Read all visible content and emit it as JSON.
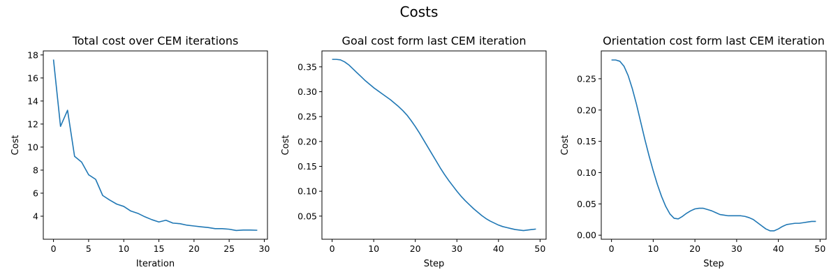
{
  "figure": {
    "title": "Costs"
  },
  "chart_data": [
    {
      "type": "line",
      "title": "Total cost over CEM iterations",
      "xlabel": "Iteration",
      "ylabel": "Cost",
      "xlim": [
        -1.45,
        30.45
      ],
      "ylim": [
        2.0,
        18.35
      ],
      "xticks": [
        0,
        5,
        10,
        15,
        20,
        25,
        30
      ],
      "yticks": [
        4,
        6,
        8,
        10,
        12,
        14,
        16,
        18
      ],
      "grid": false,
      "color": "#1f77b4",
      "x": [
        0,
        1,
        2,
        3,
        4,
        5,
        6,
        7,
        8,
        9,
        10,
        11,
        12,
        13,
        14,
        15,
        16,
        17,
        18,
        19,
        20,
        21,
        22,
        23,
        24,
        25,
        26,
        27,
        28,
        29
      ],
      "y": [
        17.6,
        11.8,
        13.2,
        9.2,
        8.7,
        7.6,
        7.2,
        5.8,
        5.4,
        5.05,
        4.85,
        4.45,
        4.25,
        3.95,
        3.7,
        3.5,
        3.65,
        3.4,
        3.35,
        3.22,
        3.15,
        3.08,
        3.02,
        2.92,
        2.92,
        2.87,
        2.76,
        2.8,
        2.8,
        2.78
      ]
    },
    {
      "type": "line",
      "title": "Goal cost form last CEM iteration",
      "xlabel": "Step",
      "ylabel": "Cost",
      "xlim": [
        -2.45,
        51.45
      ],
      "ylim": [
        0.0035,
        0.382
      ],
      "xticks": [
        0,
        10,
        20,
        30,
        40,
        50
      ],
      "yticks": [
        0.05,
        0.1,
        0.15,
        0.2,
        0.25,
        0.3,
        0.35
      ],
      "ytick_labels": [
        "0.05",
        "0.10",
        "0.15",
        "0.20",
        "0.25",
        "0.30",
        "0.35"
      ],
      "grid": false,
      "color": "#1f77b4",
      "x": [
        0,
        1,
        2,
        3,
        4,
        5,
        6,
        7,
        8,
        9,
        10,
        11,
        12,
        13,
        14,
        15,
        16,
        17,
        18,
        19,
        20,
        21,
        22,
        23,
        24,
        25,
        26,
        27,
        28,
        29,
        30,
        31,
        32,
        33,
        34,
        35,
        36,
        37,
        38,
        39,
        40,
        41,
        42,
        43,
        44,
        45,
        46,
        47,
        48,
        49
      ],
      "y": [
        0.365,
        0.365,
        0.364,
        0.36,
        0.354,
        0.346,
        0.338,
        0.33,
        0.322,
        0.315,
        0.308,
        0.302,
        0.296,
        0.29,
        0.284,
        0.277,
        0.27,
        0.262,
        0.253,
        0.242,
        0.23,
        0.217,
        0.203,
        0.189,
        0.175,
        0.161,
        0.147,
        0.134,
        0.122,
        0.111,
        0.1,
        0.09,
        0.081,
        0.073,
        0.065,
        0.058,
        0.051,
        0.045,
        0.04,
        0.036,
        0.032,
        0.029,
        0.027,
        0.025,
        0.023,
        0.022,
        0.021,
        0.022,
        0.023,
        0.024
      ]
    },
    {
      "type": "line",
      "title": "Orientation cost form last CEM iteration",
      "xlabel": "Step",
      "ylabel": "Cost",
      "xlim": [
        -2.45,
        51.45
      ],
      "ylim": [
        -0.0065,
        0.2945
      ],
      "xticks": [
        0,
        10,
        20,
        30,
        40,
        50
      ],
      "yticks": [
        0.0,
        0.05,
        0.1,
        0.15,
        0.2,
        0.25
      ],
      "ytick_labels": [
        "0.00",
        "0.05",
        "0.10",
        "0.15",
        "0.20",
        "0.25"
      ],
      "grid": false,
      "color": "#1f77b4",
      "x": [
        0,
        1,
        2,
        3,
        4,
        5,
        6,
        7,
        8,
        9,
        10,
        11,
        12,
        13,
        14,
        15,
        16,
        17,
        18,
        19,
        20,
        21,
        22,
        23,
        24,
        25,
        26,
        27,
        28,
        29,
        30,
        31,
        32,
        33,
        34,
        35,
        36,
        37,
        38,
        39,
        40,
        41,
        42,
        43,
        44,
        45,
        46,
        47,
        48,
        49
      ],
      "y": [
        0.28,
        0.28,
        0.278,
        0.27,
        0.255,
        0.234,
        0.209,
        0.181,
        0.153,
        0.127,
        0.103,
        0.081,
        0.062,
        0.046,
        0.034,
        0.027,
        0.026,
        0.03,
        0.035,
        0.039,
        0.042,
        0.043,
        0.043,
        0.041,
        0.039,
        0.036,
        0.033,
        0.032,
        0.031,
        0.031,
        0.031,
        0.031,
        0.03,
        0.028,
        0.025,
        0.02,
        0.015,
        0.01,
        0.007,
        0.007,
        0.01,
        0.014,
        0.017,
        0.018,
        0.019,
        0.019,
        0.02,
        0.021,
        0.022,
        0.022
      ]
    }
  ]
}
